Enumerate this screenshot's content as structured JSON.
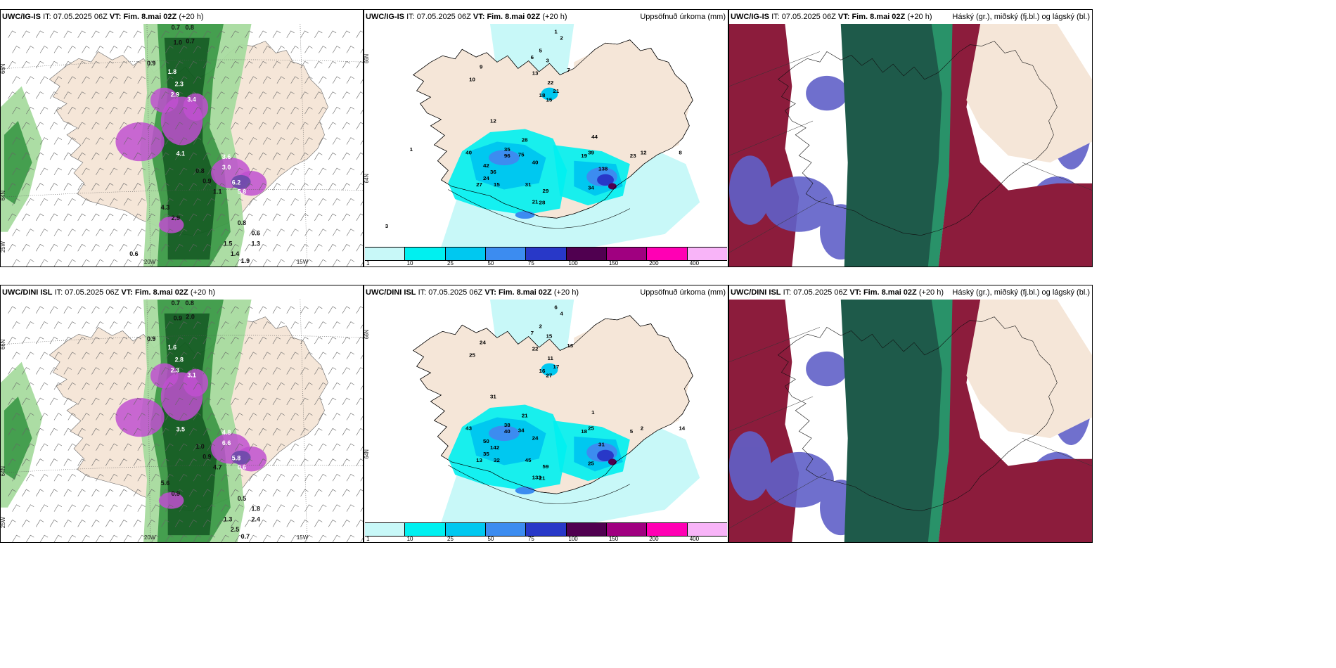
{
  "panels": [
    {
      "id": "p1",
      "model": "UWC/IG-IS",
      "it_label": "IT:",
      "it": "07.05.2025 06Z",
      "vt_label": "VT:",
      "vt": "Fim. 8.mai 02Z",
      "lead": "(+20 h)",
      "right_title": "",
      "type": "wind"
    },
    {
      "id": "p2",
      "model": "UWC/IG-IS",
      "it_label": "IT:",
      "it": "07.05.2025 06Z",
      "vt_label": "VT:",
      "vt": "Fim. 8.mai 02Z",
      "lead": "(+20 h)",
      "right_title": "Uppsöfnuð úrkoma (mm)",
      "type": "precip"
    },
    {
      "id": "p3",
      "model": "UWC/IG-IS",
      "it_label": "IT:",
      "it": "07.05.2025 06Z",
      "vt_label": "VT:",
      "vt": "Fim. 8.mai 02Z",
      "lead": "(+20 h)",
      "right_title": "Háský (gr.), miðský (fj.bl.) og lágský (bl.)",
      "type": "cloud"
    },
    {
      "id": "p4",
      "model": "UWC/DINI ISL",
      "it_label": "IT:",
      "it": "07.05.2025 06Z",
      "vt_label": "VT:",
      "vt": "Fim. 8.mai 02Z",
      "lead": "(+20 h)",
      "right_title": "",
      "type": "wind"
    },
    {
      "id": "p5",
      "model": "UWC/DINI ISL",
      "it_label": "IT:",
      "it": "07.05.2025 06Z",
      "vt_label": "VT:",
      "vt": "Fim. 8.mai 02Z",
      "lead": "(+20 h)",
      "right_title": "Uppsöfnuð úrkoma (mm)",
      "type": "precip"
    },
    {
      "id": "p6",
      "model": "UWC/DINI ISL",
      "it_label": "IT:",
      "it": "07.05.2025 06Z",
      "vt_label": "VT:",
      "vt": "Fim. 8.mai 02Z",
      "lead": "(+20 h)",
      "right_title": "Háský (gr.), miðský (fj.bl.) og lágský (bl.)",
      "type": "cloud"
    }
  ],
  "axis_labels": {
    "lon_20w": "20W",
    "lon_15w": "15W",
    "lon_25w": "25W",
    "lat_66n": "66N",
    "lat_64n": "64N"
  },
  "legend": {
    "labels": [
      "1",
      "10",
      "25",
      "50",
      "75",
      "100",
      "150",
      "200",
      "400"
    ],
    "colors": [
      "#c8f8f8",
      "#00f0f0",
      "#00c8f0",
      "#3c8cf0",
      "#2838c8",
      "#500050",
      "#a00080",
      "#ff00b4",
      "#f8b4f8"
    ]
  },
  "precip_labels_top": [
    "1",
    "2",
    "5",
    "6",
    "3",
    "7",
    "9",
    "13",
    "22",
    "21",
    "18",
    "15",
    "10",
    "12",
    "28",
    "35",
    "40",
    "42",
    "96",
    "75",
    "40",
    "36",
    "27",
    "24",
    "15",
    "31",
    "29",
    "21",
    "28",
    "34",
    "39",
    "138",
    "19",
    "44",
    "12",
    "23",
    "8",
    "1",
    "3"
  ],
  "precip_labels_bottom": [
    "6",
    "4",
    "2",
    "7",
    "15",
    "13",
    "24",
    "22",
    "11",
    "17",
    "16",
    "27",
    "25",
    "31",
    "21",
    "38",
    "43",
    "50",
    "40",
    "34",
    "24",
    "142",
    "13",
    "35",
    "32",
    "45",
    "59",
    "133",
    "21",
    "25",
    "25",
    "31",
    "18",
    "1",
    "2",
    "5",
    "14"
  ],
  "wind_values_top": [
    "0.7",
    "0.8",
    "1.0",
    "0.7",
    "0.9",
    "1.8",
    "2.3",
    "2.9",
    "3.4",
    "4.1",
    "3.6",
    "3.0",
    "6.2",
    "5.8",
    "0.8",
    "0.6",
    "1.5",
    "1.3",
    "1.4",
    "1.9",
    "0.8",
    "0.9",
    "1.1",
    "4.3",
    "2.9",
    "0.6"
  ],
  "wind_values_bottom": [
    "0.7",
    "0.8",
    "0.9",
    "2.0",
    "0.9",
    "1.6",
    "2.8",
    "2.3",
    "3.1",
    "3.5",
    "4.8",
    "6.6",
    "5.8",
    "0.6",
    "0.5",
    "1.8",
    "1.3",
    "2.4",
    "2.5",
    "0.7",
    "1.0",
    "0.9",
    "4.7",
    "5.6",
    "0.9"
  ],
  "colors": {
    "land": "#f5e6d8",
    "sea": "#ffffff",
    "green_dark": "#0f5a1e",
    "green_mid": "#3c9a46",
    "green_light": "#a8dca0",
    "purple": "#c050d0",
    "cloud_high": "#1e6446",
    "cloud_mid": "#6060c8",
    "cloud_low": "#8c1c3c"
  }
}
